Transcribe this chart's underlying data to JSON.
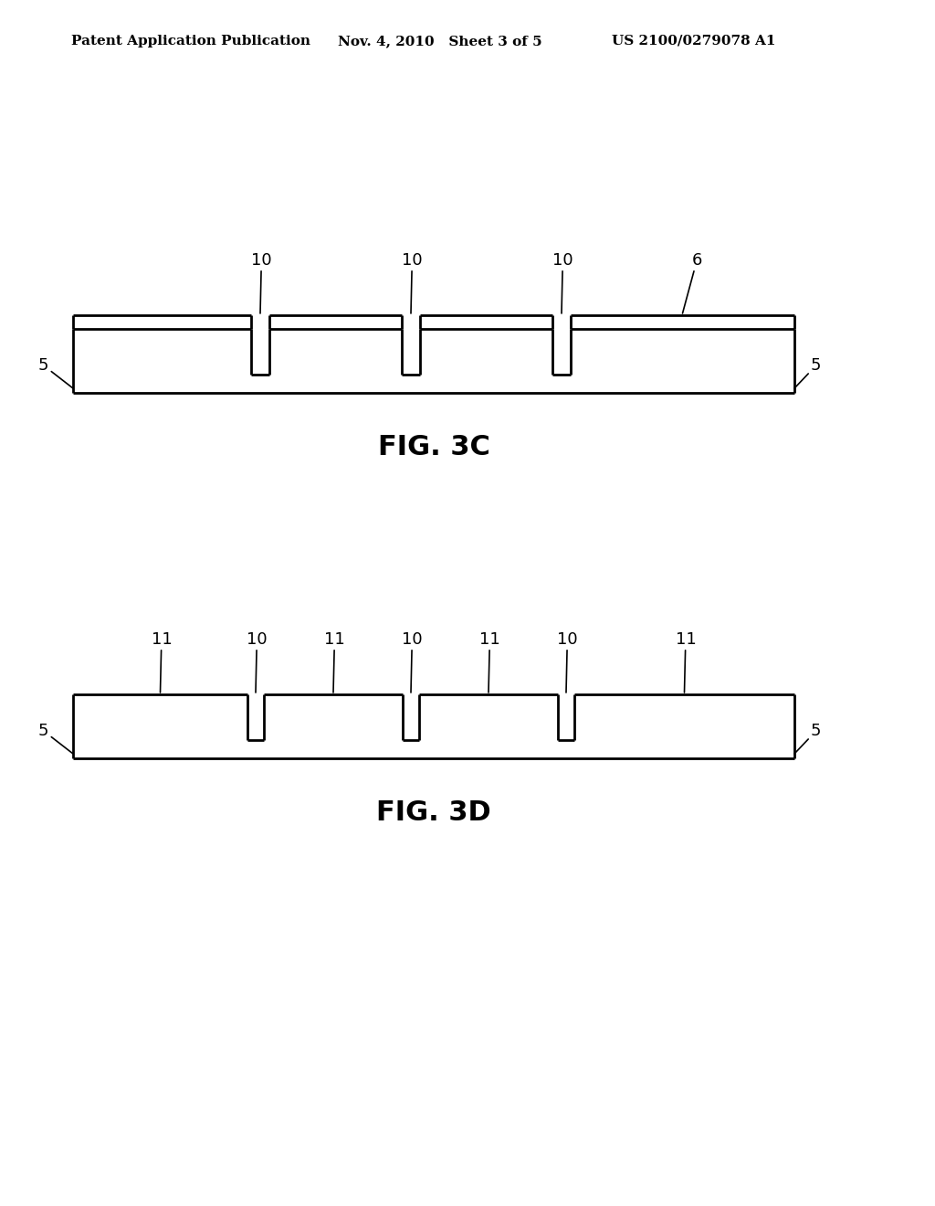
{
  "bg_color": "#ffffff",
  "line_color": "#000000",
  "header_left": "Patent Application Publication",
  "header_mid": "Nov. 4, 2010   Sheet 3 of 5",
  "header_right": "US 2100/0279078 A1",
  "fig3c_label": "FIG. 3C",
  "fig3d_label": "FIG. 3D",
  "fig3c_groove_labels": [
    "10",
    "10",
    "10"
  ],
  "fig3c_coating_label": "6",
  "fig3d_raised_labels": [
    "11",
    "11",
    "11",
    "11"
  ],
  "fig3d_groove_labels": [
    "10",
    "10",
    "10"
  ],
  "substrate_label": "5",
  "lw": 2.0,
  "header_fontsize": 11,
  "label_fontsize": 13,
  "caption_fontsize": 22
}
